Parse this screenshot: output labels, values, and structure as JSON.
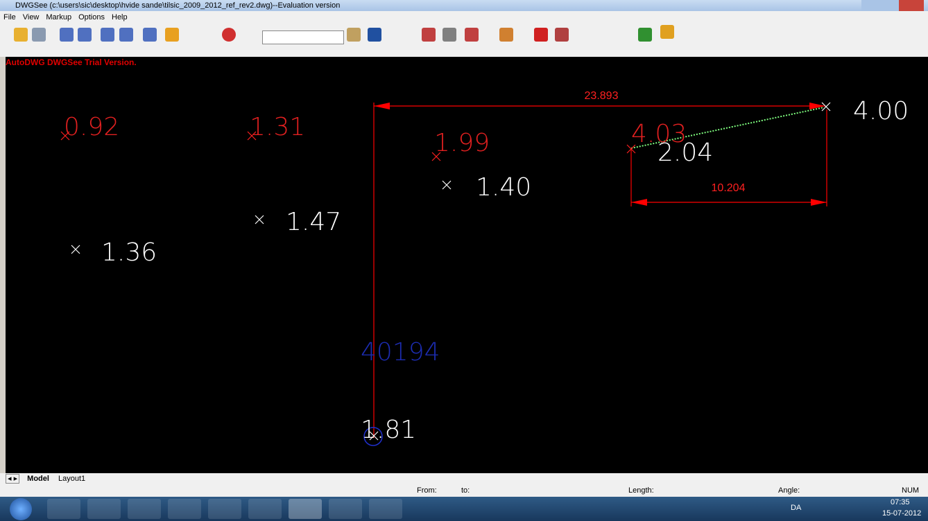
{
  "window": {
    "title": "DWGSee (c:\\users\\sic\\desktop\\hvide sande\\tilsic_2009_2012_ref_rev2.dwg)--Evaluation version"
  },
  "menu": [
    "File",
    "View",
    "Markup",
    "Options",
    "Help"
  ],
  "trial_notice": "AutoDWG DWGSee Trial Version.",
  "drawing": {
    "labels": [
      "0.92",
      "1.31",
      "1.99",
      "4.03",
      "2.04",
      "4.00",
      "1.40",
      "1.47",
      "1.36",
      "40194",
      "1.81"
    ],
    "dimensions": [
      "23.893",
      "10.204"
    ]
  },
  "tabs": [
    "Model",
    "Layout1"
  ],
  "status": [
    "From:",
    "to:",
    "Length:",
    "Angle:",
    "NUM"
  ],
  "tray": {
    "language": "DA",
    "time": "07:35",
    "date": "15-07-2012"
  }
}
